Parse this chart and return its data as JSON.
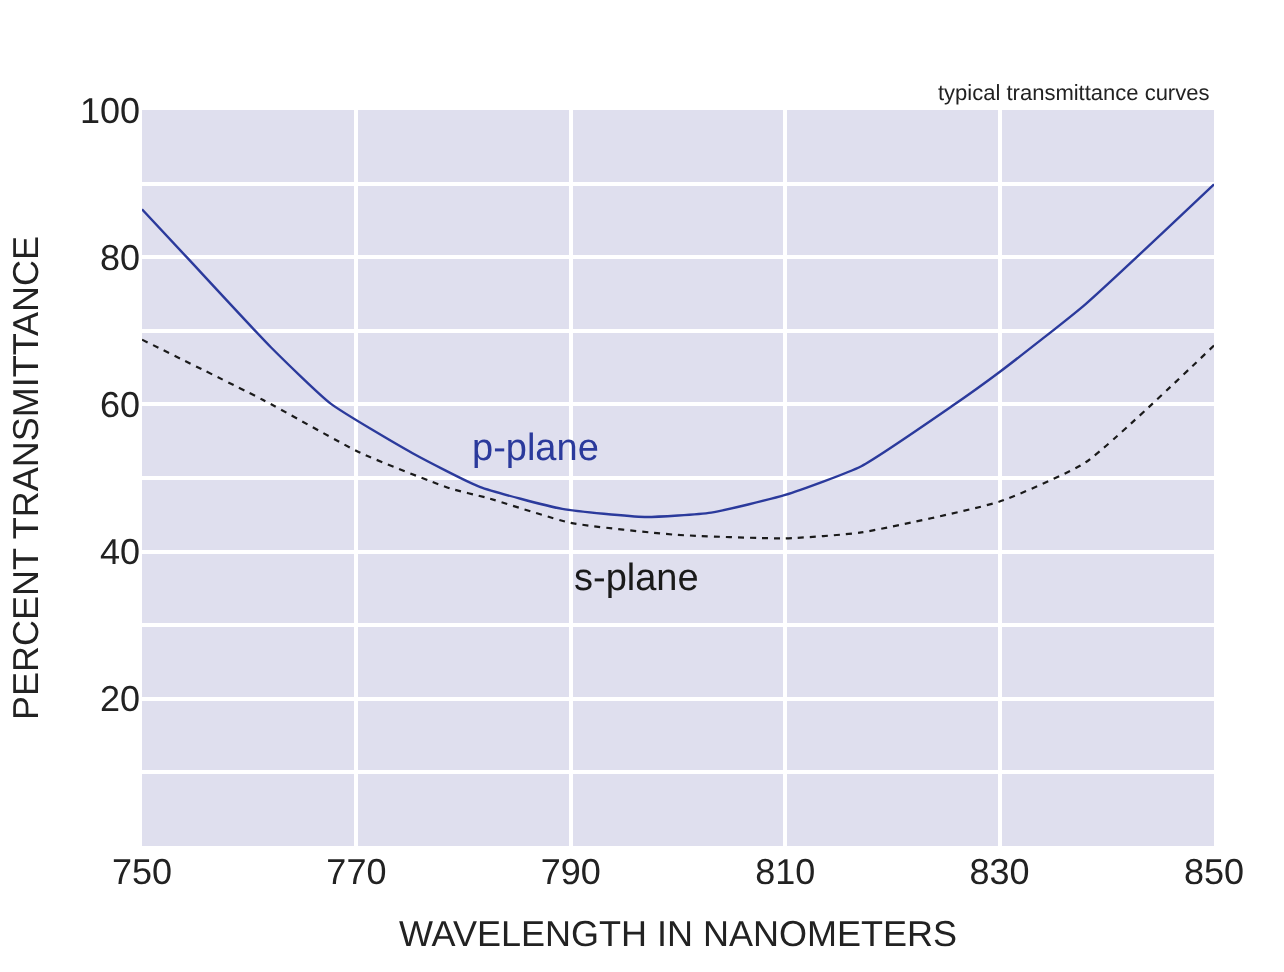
{
  "chart_data": {
    "type": "line",
    "xlabel": "WAVELENGTH IN NANOMETERS",
    "ylabel": "PERCENT TRANSMITTANCE",
    "annotations": [
      "typical transmittance curves"
    ],
    "xlim": [
      750,
      850
    ],
    "xticks": [
      750,
      770,
      790,
      810,
      830,
      850
    ],
    "ylim": [
      0,
      100
    ],
    "yticks": [
      {
        "value": 10,
        "label": null
      },
      20,
      {
        "value": 30,
        "label": null
      },
      40,
      {
        "value": 50,
        "label": null
      },
      60,
      {
        "value": 70,
        "label": null
      },
      80,
      {
        "value": 90,
        "label": null
      },
      100
    ],
    "grid": true,
    "legend": false,
    "marker": "none",
    "series": [
      {
        "name": "p-plane",
        "color": "#2b3a9c",
        "line_style": "solid",
        "x": [
          750,
          754.3,
          762,
          767.6,
          775.2,
          781.5,
          789.2,
          796.9,
          803.1,
          810,
          817.1,
          825.5,
          830,
          838,
          850
        ],
        "values": [
          86.5,
          79.8,
          67.8,
          60.1,
          53.4,
          48.8,
          45.8,
          44.7,
          45.3,
          47.7,
          51.6,
          59.7,
          64.4,
          73.6,
          89.9
        ]
      },
      {
        "name": "s-plane",
        "color": "#1a1a1a",
        "line_style": "dotted",
        "x": [
          750,
          761.3,
          770.4,
          778.7,
          782.2,
          790,
          799.7,
          810,
          817.1,
          830,
          838,
          850
        ],
        "values": [
          68.8,
          60.6,
          53.4,
          48.6,
          47.3,
          43.9,
          42.3,
          41.8,
          42.6,
          46.8,
          52.1,
          68.0
        ]
      }
    ]
  }
}
